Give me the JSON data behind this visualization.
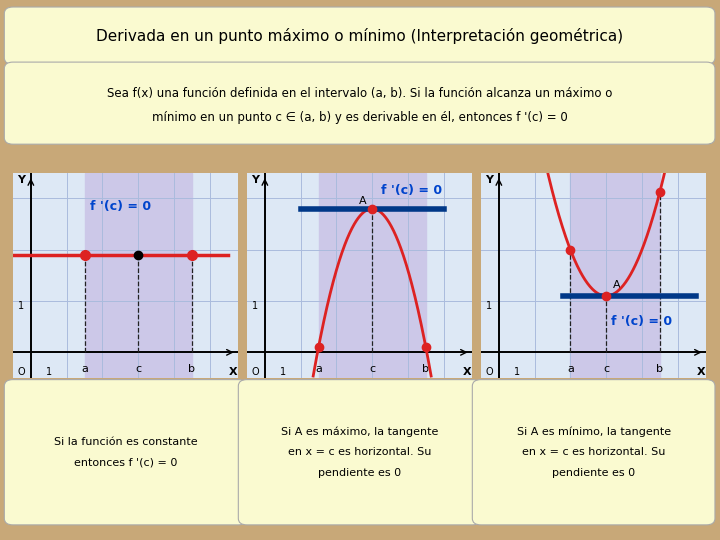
{
  "title": "Derivada en un punto máximo o mínimo (Interpretación geométrica)",
  "subtitle_line1": "Sea f(x) una función definida en el intervalo (a, b). Si la función alcanza un máximo o",
  "subtitle_line2": "mínimo en un punto c ∈ (a, b) y es derivable en él, entonces f '(c) = 0",
  "bg_color": "#c8a878",
  "panel_bg": "#fafad0",
  "graph_bg": "#dde8f5",
  "shaded_bg": "#ccc8e8",
  "grid_color": "#aabbdd",
  "curve_color": "#dd2222",
  "tangent_color": "#003888",
  "label_color": "#0044cc",
  "dashed_color": "#222222",
  "box1_text1": "Si la función es constante",
  "box1_text2": "entonces f '(c) = 0",
  "box2_text1": "Si A es máximo, la tangente",
  "box2_text2": "en x = c es horizontal. Su",
  "box2_text3": "pendiente es 0",
  "box3_text1": "Si A es mínimo, la tangente",
  "box3_text2": "en x = c es horizontal. Su",
  "box3_text3": "pendiente es 0"
}
